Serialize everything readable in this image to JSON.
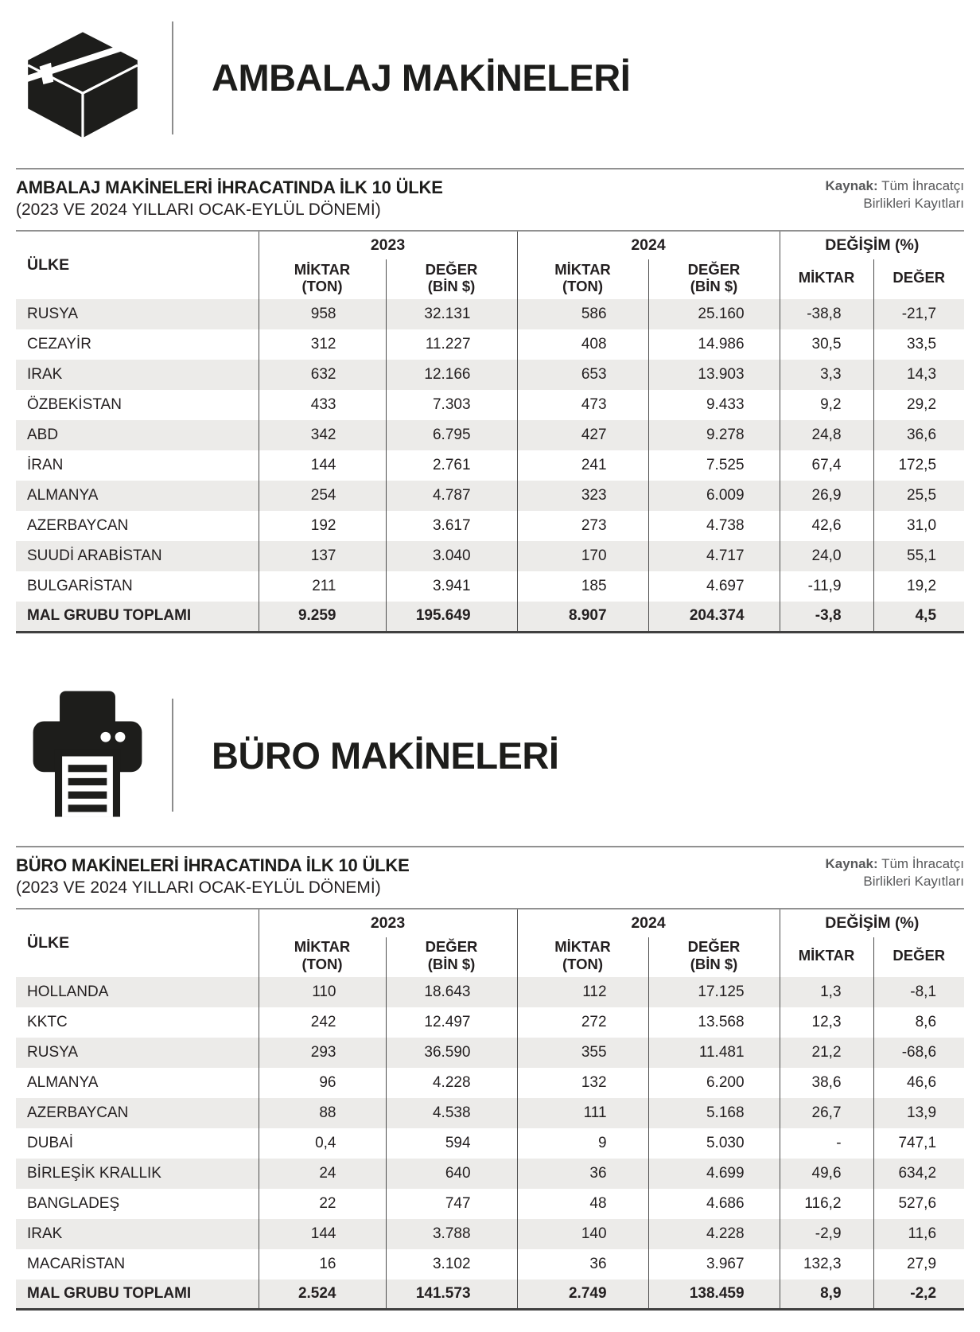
{
  "colors": {
    "text": "#231f20",
    "icon_black": "#1d1d1b",
    "row_alt_background": "#ECEBE9",
    "rule_gray": "#919191",
    "divider_dark": "#4d4d4d",
    "total_border": "#404040",
    "source_gray": "#58595b"
  },
  "source": {
    "label": "Kaynak:",
    "text": "Tüm İhracatçı Birlikleri Kayıtları"
  },
  "table_headers": {
    "country": "ÜLKE",
    "groups": [
      "2023",
      "2024",
      "DEĞİŞİM (%)"
    ],
    "subcolumns": [
      {
        "label": "MİKTAR",
        "unit": "(TON)"
      },
      {
        "label": "DEĞER",
        "unit": "(BİN $)"
      },
      {
        "label": "MİKTAR",
        "unit": "(TON)"
      },
      {
        "label": "DEĞER",
        "unit": "(BİN $)"
      },
      {
        "label": "MİKTAR",
        "unit": ""
      },
      {
        "label": "DEĞER",
        "unit": ""
      }
    ]
  },
  "sections": [
    {
      "icon": "package-box-icon",
      "heading": "AMBALAJ MAKİNELERİ",
      "table_title": "AMBALAJ MAKİNELERİ İHRACATINDA İLK 10 ÜLKE",
      "table_subtitle": "(2023 VE 2024 YILLARI OCAK-EYLÜL DÖNEMİ)",
      "rows": [
        [
          "RUSYA",
          "958",
          "32.131",
          "586",
          "25.160",
          "-38,8",
          "-21,7"
        ],
        [
          "CEZAYİR",
          "312",
          "11.227",
          "408",
          "14.986",
          "30,5",
          "33,5"
        ],
        [
          "IRAK",
          "632",
          "12.166",
          "653",
          "13.903",
          "3,3",
          "14,3"
        ],
        [
          "ÖZBEKİSTAN",
          "433",
          "7.303",
          "473",
          "9.433",
          "9,2",
          "29,2"
        ],
        [
          "ABD",
          "342",
          "6.795",
          "427",
          "9.278",
          "24,8",
          "36,6"
        ],
        [
          "İRAN",
          "144",
          "2.761",
          "241",
          "7.525",
          "67,4",
          "172,5"
        ],
        [
          "ALMANYA",
          "254",
          "4.787",
          "323",
          "6.009",
          "26,9",
          "25,5"
        ],
        [
          "AZERBAYCAN",
          "192",
          "3.617",
          "273",
          "4.738",
          "42,6",
          "31,0"
        ],
        [
          "SUUDİ ARABİSTAN",
          "137",
          "3.040",
          "170",
          "4.717",
          "24,0",
          "55,1"
        ],
        [
          "BULGARİSTAN",
          "211",
          "3.941",
          "185",
          "4.697",
          "-11,9",
          "19,2"
        ]
      ],
      "total": [
        "MAL GRUBU TOPLAMI",
        "9.259",
        "195.649",
        "8.907",
        "204.374",
        "-3,8",
        "4,5"
      ]
    },
    {
      "icon": "printer-icon",
      "heading": "BÜRO MAKİNELERİ",
      "table_title": "BÜRO MAKİNELERİ İHRACATINDA İLK 10 ÜLKE",
      "table_subtitle": "(2023 VE 2024 YILLARI OCAK-EYLÜL DÖNEMİ)",
      "rows": [
        [
          "HOLLANDA",
          "110",
          "18.643",
          "112",
          "17.125",
          "1,3",
          "-8,1"
        ],
        [
          "KKTC",
          "242",
          "12.497",
          "272",
          "13.568",
          "12,3",
          "8,6"
        ],
        [
          "RUSYA",
          "293",
          "36.590",
          "355",
          "11.481",
          "21,2",
          "-68,6"
        ],
        [
          "ALMANYA",
          "96",
          "4.228",
          "132",
          "6.200",
          "38,6",
          "46,6"
        ],
        [
          "AZERBAYCAN",
          "88",
          "4.538",
          "111",
          "5.168",
          "26,7",
          "13,9"
        ],
        [
          "DUBAİ",
          "0,4",
          "594",
          "9",
          "5.030",
          "-",
          "747,1"
        ],
        [
          "BİRLEŞİK KRALLIK",
          "24",
          "640",
          "36",
          "4.699",
          "49,6",
          "634,2"
        ],
        [
          "BANGLADEŞ",
          "22",
          "747",
          "48",
          "4.686",
          "116,2",
          "527,6"
        ],
        [
          "IRAK",
          "144",
          "3.788",
          "140",
          "4.228",
          "-2,9",
          "11,6"
        ],
        [
          "MACARİSTAN",
          "16",
          "3.102",
          "36",
          "3.967",
          "132,3",
          "27,9"
        ]
      ],
      "total": [
        "MAL GRUBU TOPLAMI",
        "2.524",
        "141.573",
        "2.749",
        "138.459",
        "8,9",
        "-2,2"
      ]
    }
  ]
}
